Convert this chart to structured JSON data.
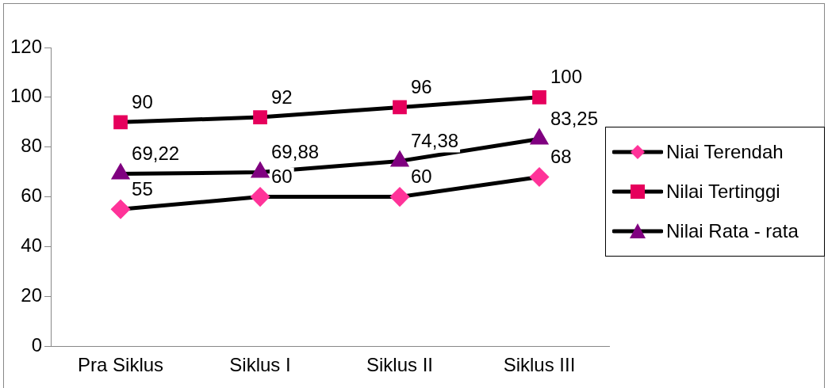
{
  "chart_data": {
    "type": "line",
    "categories": [
      "Pra Siklus",
      "Siklus I",
      "Siklus II",
      "Siklus III"
    ],
    "series": [
      {
        "name": "Niai Terendah",
        "color": "#ff3399",
        "marker": "diamond",
        "values": [
          55,
          60,
          60,
          68
        ],
        "value_labels": [
          "55",
          "60",
          "60",
          "68"
        ]
      },
      {
        "name": "Nilai Tertinggi",
        "color": "#e6005c",
        "marker": "square",
        "values": [
          90,
          92,
          96,
          100
        ],
        "value_labels": [
          "90",
          "92",
          "96",
          "100"
        ]
      },
      {
        "name": "Nilai Rata - rata",
        "color": "#800080",
        "marker": "triangle",
        "values": [
          69.22,
          69.88,
          74.38,
          83.25
        ],
        "value_labels": [
          "69,22",
          "69,88",
          "74,38",
          "83,25"
        ]
      }
    ],
    "ylim": [
      0,
      120
    ],
    "yticks": [
      0,
      20,
      40,
      60,
      80,
      100,
      120
    ],
    "grid": false,
    "legend": "right",
    "line_style": "solid"
  }
}
